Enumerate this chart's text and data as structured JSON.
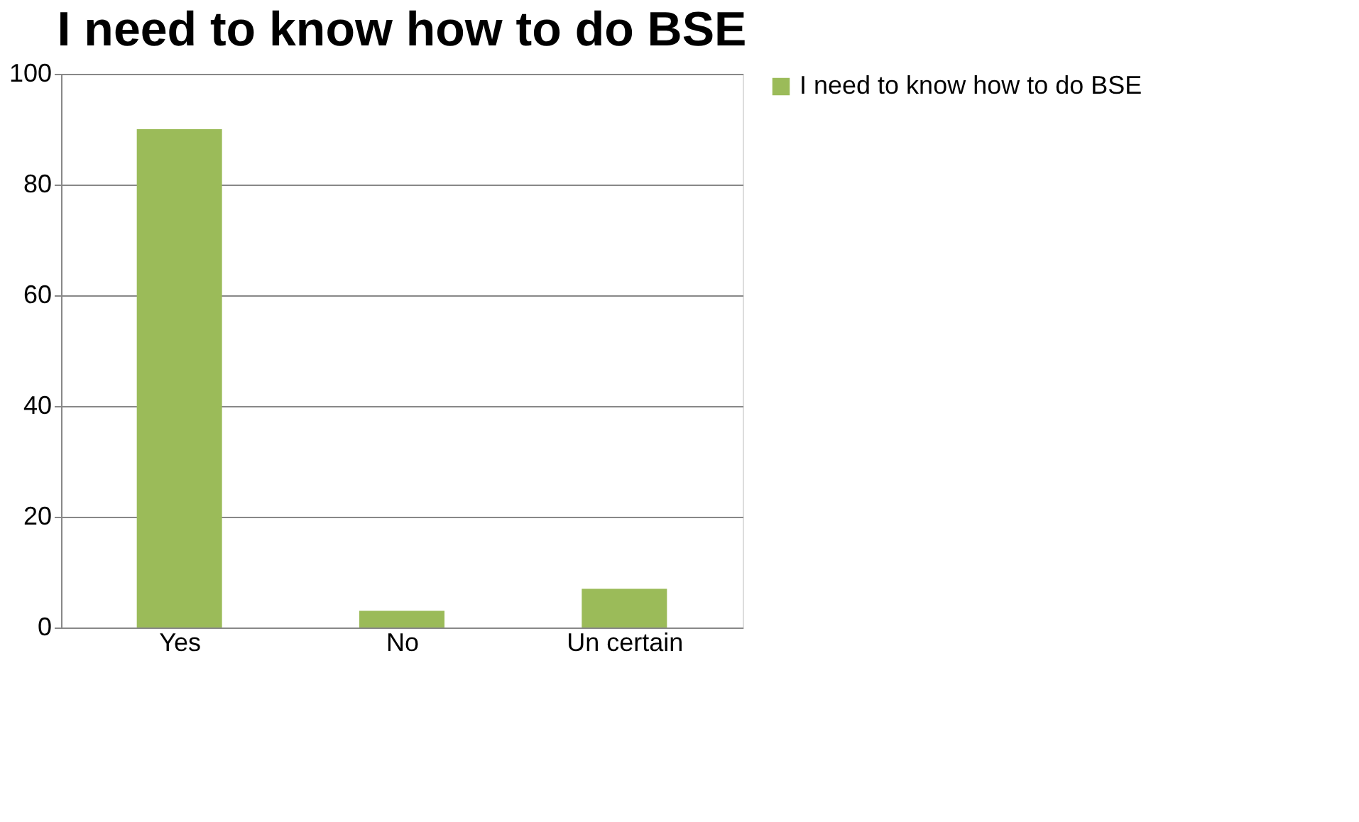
{
  "chart_data": {
    "type": "bar",
    "title": "I need to know how to do BSE",
    "categories": [
      "Yes",
      "No",
      "Un certain"
    ],
    "series": [
      {
        "name": "I need to know how to do BSE",
        "color": "#9bbb59",
        "values": [
          90,
          3,
          7
        ]
      }
    ],
    "ylim": [
      0,
      100
    ],
    "yticks": [
      0,
      20,
      40,
      60,
      80,
      100
    ],
    "grid": "y",
    "legend": "right"
  }
}
